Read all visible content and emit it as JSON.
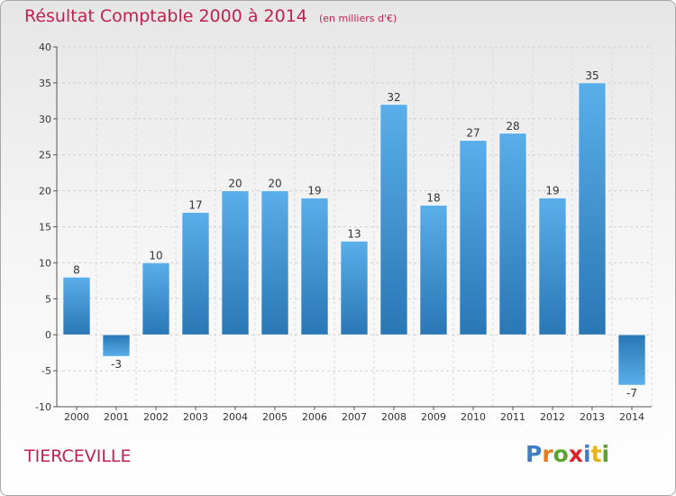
{
  "header": {
    "title": "Résultat Comptable 2000 à 2014",
    "unit": "(en milliers d'€)"
  },
  "commune": "TIERCEVILLE",
  "logo": {
    "text": "Proxiti",
    "colors": [
      "#3f7ec2",
      "#e77c1b",
      "#5aa431",
      "#d9262c",
      "#3f7ec2",
      "#e8b21b",
      "#5aa431"
    ]
  },
  "chart_data": {
    "type": "bar",
    "categories": [
      "2000",
      "2001",
      "2002",
      "2003",
      "2004",
      "2005",
      "2006",
      "2007",
      "2008",
      "2009",
      "2010",
      "2011",
      "2012",
      "2013",
      "2014"
    ],
    "values": [
      8,
      -3,
      10,
      17,
      20,
      20,
      19,
      13,
      32,
      18,
      27,
      28,
      19,
      35,
      -7
    ],
    "ylim": [
      -10,
      40
    ],
    "yticks": [
      -10,
      -5,
      0,
      5,
      10,
      15,
      20,
      25,
      30,
      35,
      40
    ],
    "grid": true,
    "bar_color_light": "#5aaeea",
    "bar_color_dark": "#2a77b6"
  }
}
